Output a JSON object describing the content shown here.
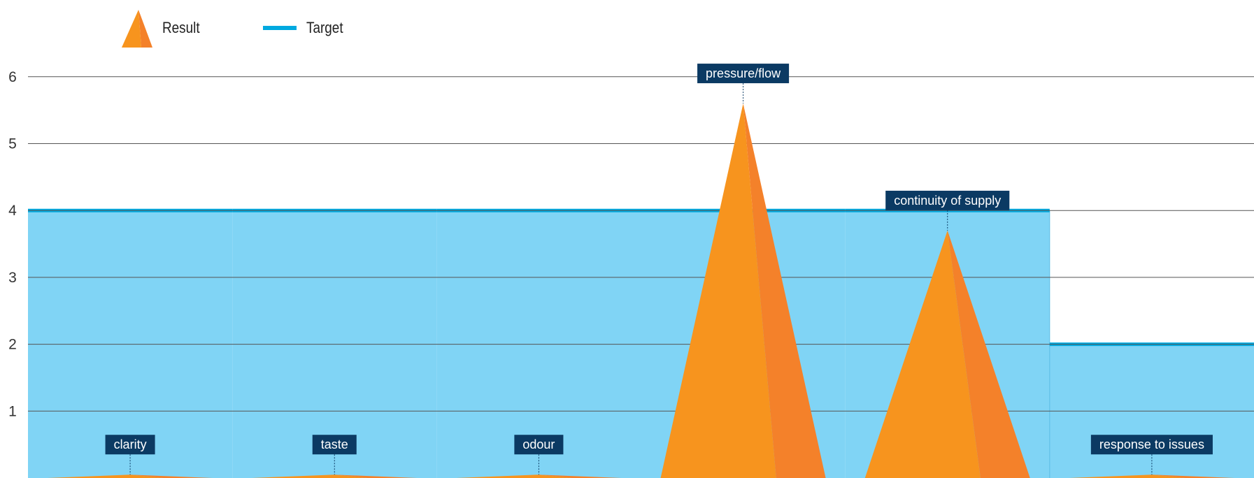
{
  "legend": {
    "result_label": "Result",
    "target_label": "Target"
  },
  "colors": {
    "result": "#F7941E",
    "result_shade": "#F4812A",
    "target_line": "#00A9E0",
    "target_fill": "#80D4F5",
    "label_bg": "#0B3A63",
    "grid": "#555555"
  },
  "chart_data": {
    "type": "area",
    "categories": [
      "clarity",
      "taste",
      "odour",
      "pressure/flow",
      "continuity of supply",
      "response to issues"
    ],
    "series": [
      {
        "name": "Result",
        "values": [
          0.05,
          0.05,
          0.05,
          5.6,
          3.7,
          0.05
        ]
      },
      {
        "name": "Target",
        "values": [
          4,
          4,
          4,
          4,
          4,
          2
        ]
      }
    ],
    "y_ticks": [
      "1",
      "2",
      "3",
      "4",
      "5",
      "6"
    ],
    "ylim": [
      0,
      6
    ],
    "grid": true,
    "legend_position": "top-left"
  }
}
